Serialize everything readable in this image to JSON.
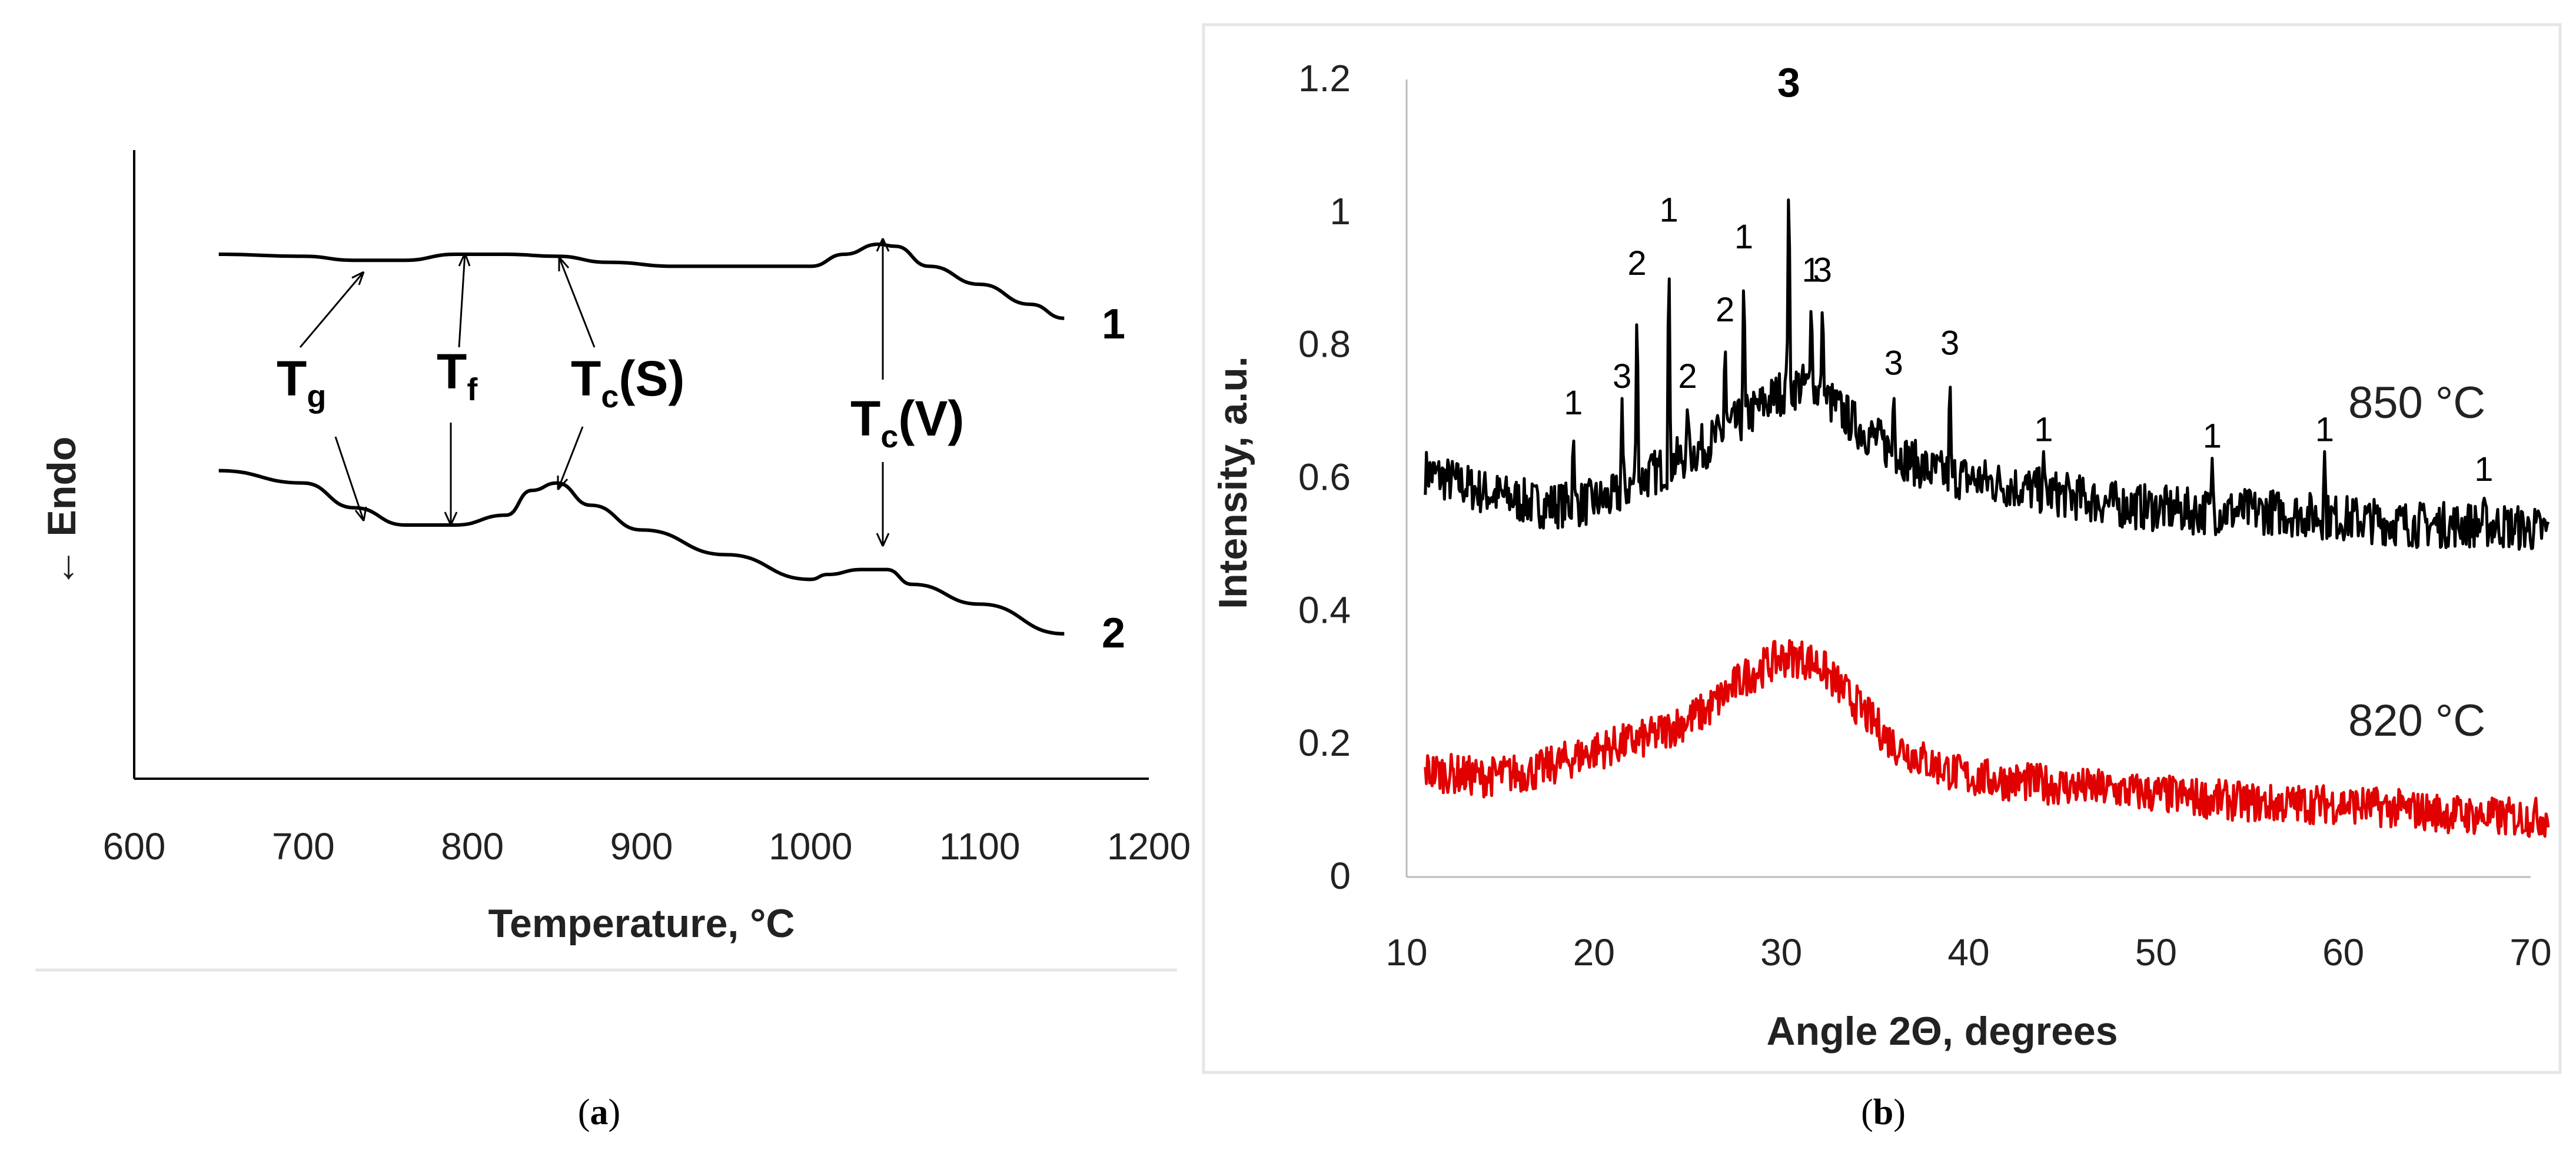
{
  "chart_data": [
    {
      "type": "line",
      "panel": "a",
      "caption": "a",
      "xlabel": "Temperature, °C",
      "ylabel": "← Endo",
      "xlim": [
        600,
        1200
      ],
      "x_ticks": [
        "600",
        "700",
        "800",
        "900",
        "1000",
        "1100",
        "1200"
      ],
      "series": [
        {
          "name": "1",
          "x": [
            650,
            700,
            730,
            760,
            790,
            820,
            850,
            880,
            920,
            960,
            1000,
            1020,
            1040,
            1050,
            1070,
            1100,
            1130,
            1150
          ],
          "values": [
            0.95,
            0.94,
            0.92,
            0.92,
            0.95,
            0.95,
            0.94,
            0.91,
            0.89,
            0.89,
            0.89,
            0.95,
            1.0,
            0.99,
            0.89,
            0.8,
            0.7,
            0.63
          ]
        },
        {
          "name": "2",
          "x": [
            650,
            700,
            730,
            760,
            790,
            820,
            835,
            850,
            870,
            900,
            950,
            1000,
            1010,
            1030,
            1045,
            1060,
            1100,
            1150
          ],
          "values": [
            0.6,
            0.55,
            0.45,
            0.38,
            0.38,
            0.42,
            0.52,
            0.55,
            0.46,
            0.36,
            0.26,
            0.16,
            0.18,
            0.2,
            0.2,
            0.14,
            0.06,
            -0.06
          ]
        }
      ],
      "annotations": [
        {
          "main": "T",
          "sub": "g"
        },
        {
          "main": "T",
          "sub": "f"
        },
        {
          "main": "T",
          "sub": "c",
          "suffix": "(S)"
        },
        {
          "main": "T",
          "sub": "c",
          "suffix": "(V)"
        }
      ]
    },
    {
      "type": "line",
      "panel": "b",
      "caption": "b",
      "xlabel": "Angle 2Θ, degrees",
      "ylabel": "Intensity, a.u.",
      "xlim": [
        10,
        70
      ],
      "ylim": [
        0,
        1.2
      ],
      "x_ticks": [
        "10",
        "20",
        "30",
        "40",
        "50",
        "60",
        "70"
      ],
      "y_ticks": [
        "0",
        "0.2",
        "0.4",
        "0.6",
        "0.8",
        "1",
        "1.2"
      ],
      "series": [
        {
          "name": "850 °C",
          "color": "#000000",
          "x": [
            11,
            14,
            17,
            19,
            21,
            22,
            24,
            26,
            28,
            30,
            31,
            32,
            34,
            36,
            38,
            40,
            44,
            48,
            52,
            56,
            60,
            64,
            68,
            71
          ],
          "values": [
            0.61,
            0.58,
            0.56,
            0.56,
            0.57,
            0.59,
            0.62,
            0.65,
            0.69,
            0.73,
            0.74,
            0.73,
            0.68,
            0.64,
            0.61,
            0.6,
            0.58,
            0.56,
            0.55,
            0.55,
            0.54,
            0.53,
            0.53,
            0.52
          ],
          "peaks": [
            {
              "x": 18.9,
              "y": 0.68,
              "label": "1"
            },
            {
              "x": 21.5,
              "y": 0.72,
              "label": "3"
            },
            {
              "x": 22.3,
              "y": 0.89,
              "label": "2"
            },
            {
              "x": 24.0,
              "y": 0.97,
              "label": "1"
            },
            {
              "x": 25.0,
              "y": 0.72,
              "label": "2"
            },
            {
              "x": 27.0,
              "y": 0.82,
              "label": "2"
            },
            {
              "x": 28.0,
              "y": 0.93,
              "label": "1"
            },
            {
              "x": 30.4,
              "y": 1.09,
              "label": "3"
            },
            {
              "x": 31.6,
              "y": 0.88,
              "label": "1"
            },
            {
              "x": 32.2,
              "y": 0.88,
              "label": "3"
            },
            {
              "x": 36.0,
              "y": 0.74,
              "label": "3"
            },
            {
              "x": 39.0,
              "y": 0.77,
              "label": "3"
            },
            {
              "x": 44.0,
              "y": 0.64,
              "label": "1"
            },
            {
              "x": 53.0,
              "y": 0.63,
              "label": "1"
            },
            {
              "x": 59.0,
              "y": 0.64,
              "label": "1"
            },
            {
              "x": 67.5,
              "y": 0.58,
              "label": "1"
            }
          ]
        },
        {
          "name": "820 °C",
          "color": "#e00000",
          "x": [
            11,
            14,
            17,
            20,
            23,
            26,
            28,
            30,
            31,
            32,
            33,
            34,
            36,
            38,
            40,
            44,
            48,
            52,
            56,
            60,
            64,
            68,
            71
          ],
          "values": [
            0.16,
            0.15,
            0.16,
            0.19,
            0.21,
            0.25,
            0.3,
            0.33,
            0.33,
            0.32,
            0.29,
            0.26,
            0.2,
            0.17,
            0.15,
            0.14,
            0.13,
            0.12,
            0.11,
            0.11,
            0.1,
            0.09,
            0.09
          ]
        }
      ]
    }
  ]
}
